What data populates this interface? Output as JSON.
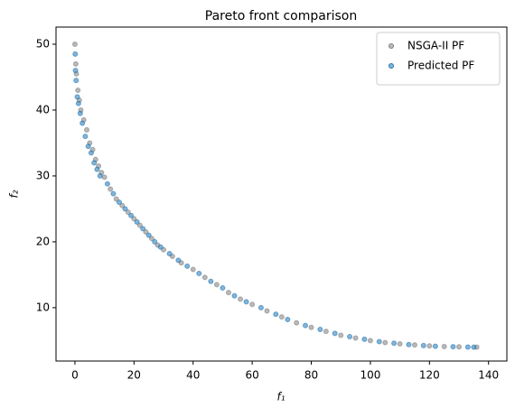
{
  "chart_data": {
    "type": "scatter",
    "title": "Pareto front comparison",
    "x_label": "f₁",
    "y_label": "f₂",
    "xlim": [
      -6.4,
      146.2
    ],
    "ylim": [
      1.9,
      52.6
    ],
    "xticks": [
      0,
      20,
      40,
      60,
      80,
      100,
      120,
      140
    ],
    "yticks": [
      10,
      20,
      30,
      40,
      50
    ],
    "legend": "upper right",
    "series": [
      {
        "name": "NSGA-II PF",
        "color": "#808080",
        "x": [
          0,
          0.3,
          0.5,
          1,
          1.5,
          2,
          3,
          4,
          5,
          6,
          7,
          8,
          9,
          10,
          12,
          14,
          16,
          18,
          20,
          22,
          24,
          26,
          28,
          30,
          33,
          36,
          40,
          44,
          48,
          52,
          56,
          60,
          65,
          70,
          75,
          80,
          85,
          90,
          95,
          100,
          105,
          110,
          115,
          120,
          125,
          130,
          136
        ],
        "values": [
          50,
          47,
          45.5,
          43,
          41.5,
          40,
          38.5,
          37,
          35,
          34,
          32.5,
          31.5,
          30.5,
          29.8,
          28,
          26.5,
          25.5,
          24.5,
          23.5,
          22.5,
          21.5,
          20.5,
          19.5,
          18.8,
          17.8,
          16.8,
          15.8,
          14.6,
          13.5,
          12.3,
          11.3,
          10.5,
          9.5,
          8.6,
          7.7,
          7,
          6.4,
          5.8,
          5.4,
          5,
          4.7,
          4.5,
          4.35,
          4.2,
          4.1,
          4.05,
          4
        ]
      },
      {
        "name": "Predicted PF",
        "color": "#1f77b4",
        "x": [
          0.1,
          0.2,
          0.4,
          0.8,
          1.2,
          1.8,
          2.5,
          3.5,
          4.5,
          5.5,
          6.5,
          7.5,
          8.5,
          11,
          13,
          15,
          17,
          19,
          21,
          23,
          25,
          27,
          29,
          32,
          35,
          38,
          42,
          46,
          50,
          54,
          58,
          63,
          68,
          72,
          78,
          83,
          88,
          93,
          98,
          103,
          108,
          113,
          118,
          122,
          128,
          133,
          135
        ],
        "values": [
          48.5,
          46,
          44.5,
          42,
          41,
          39.5,
          38,
          36,
          34.5,
          33.5,
          32,
          31,
          30,
          28.8,
          27.3,
          26,
          25,
          24,
          23,
          22,
          21,
          20,
          19.2,
          18.2,
          17.2,
          16.3,
          15.2,
          14,
          13,
          11.8,
          10.9,
          10,
          9,
          8.2,
          7.3,
          6.7,
          6.1,
          5.6,
          5.2,
          4.85,
          4.6,
          4.4,
          4.25,
          4.15,
          4.07,
          4.02,
          4
        ]
      }
    ]
  }
}
